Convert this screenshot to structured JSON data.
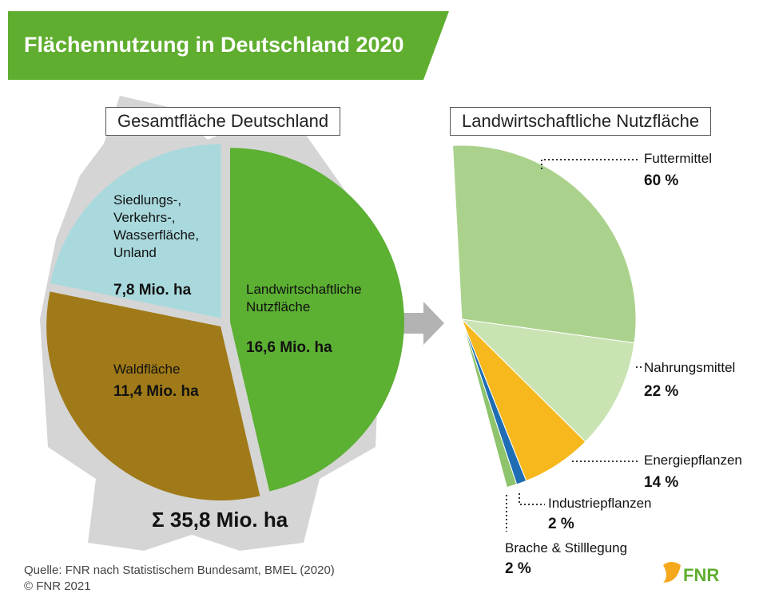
{
  "title": "Flächennutzung in Deutschland 2020",
  "chart_data": [
    {
      "type": "pie",
      "title": "Gesamtfläche Deutschland",
      "categories": [
        "Landwirtschaftliche\nNutzfläche",
        "Waldfläche",
        "Siedlungs-,\nVerkehrs-,\nWasserfläche,\nUnland"
      ],
      "values": [
        16.6,
        11.4,
        7.8
      ],
      "value_labels": [
        "16,6 Mio. ha",
        "11,4 Mio. ha",
        "7,8 Mio. ha"
      ],
      "colors": [
        "#5cb032",
        "#a07a18",
        "#a9d9dd"
      ],
      "total_label": "Σ 35,8 Mio. ha"
    },
    {
      "type": "pie",
      "title": "Landwirtschaftliche Nutzfläche",
      "categories": [
        "Futtermittel",
        "Nahrungsmittel",
        "Energiepflanzen",
        "Industriepflanzen",
        "Brache & Stilllegung"
      ],
      "values": [
        60,
        22,
        14,
        2,
        2
      ],
      "value_labels": [
        "60 %",
        "22 %",
        "14 %",
        "2 %",
        "2 %"
      ],
      "colors": [
        "#abd28d",
        "#cae3b3",
        "#f6b81c",
        "#1f6db3",
        "#8ec46c"
      ]
    }
  ],
  "source": "Quelle: FNR nach Statistischem Bundesamt, BMEL (2020)",
  "copyright": "© FNR 2021",
  "logo": "FNR"
}
